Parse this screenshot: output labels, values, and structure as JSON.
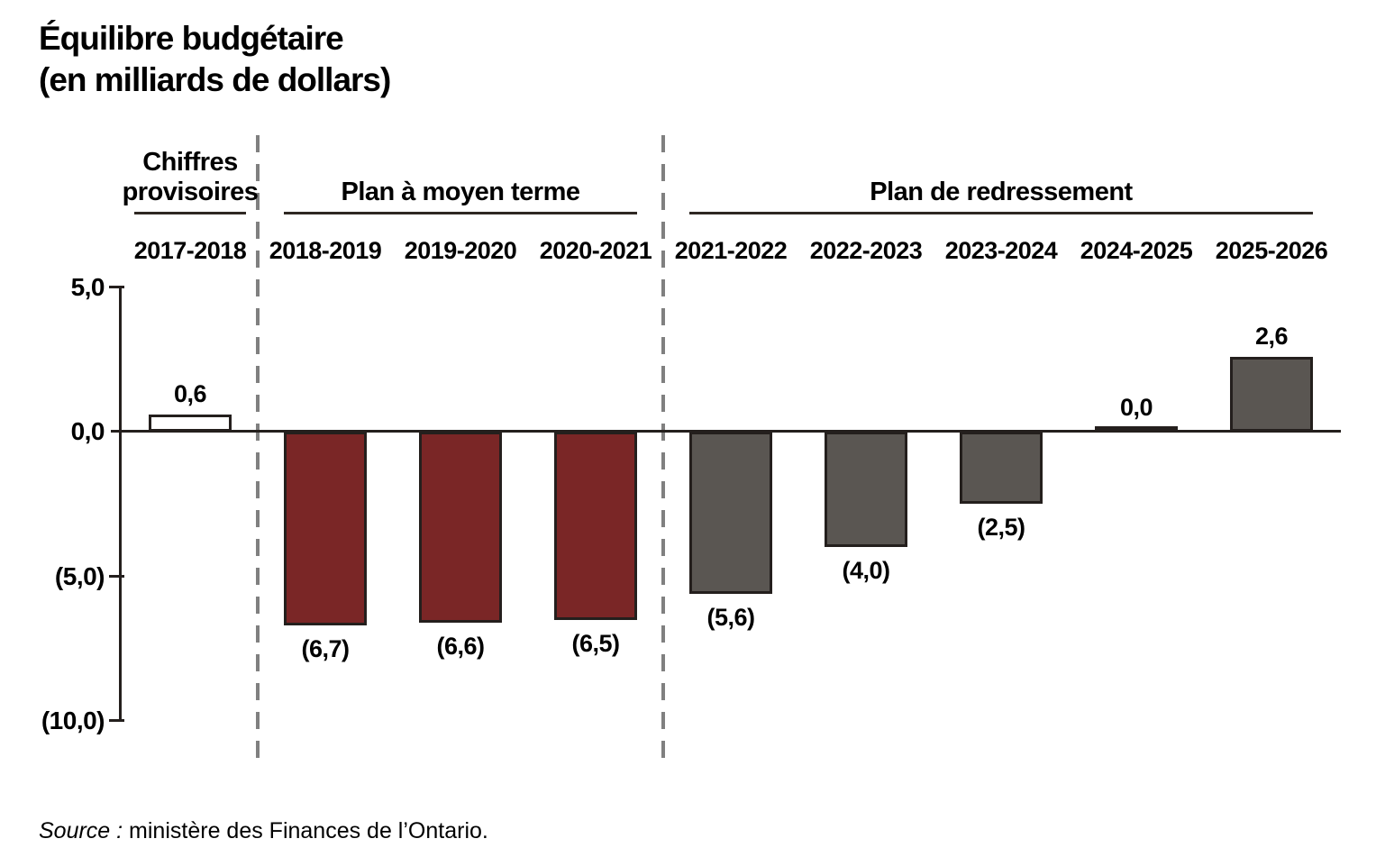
{
  "page": {
    "title_line1": "Équilibre budgétaire",
    "title_line2": "(en milliards de dollars)",
    "source_prefix": "Source :",
    "source_text": " ministère des Finances de l’Ontario."
  },
  "chart_data": {
    "type": "bar",
    "title": "Équilibre budgétaire (en milliards de dollars)",
    "ylabel": "",
    "xlabel": "",
    "categories": [
      "2017-2018",
      "2018-2019",
      "2019-2020",
      "2020-2021",
      "2021-2022",
      "2022-2023",
      "2023-2024",
      "2024-2025",
      "2025-2026"
    ],
    "values": [
      0.6,
      -6.7,
      -6.6,
      -6.5,
      -5.6,
      -4.0,
      -2.5,
      0.0,
      2.6
    ],
    "value_labels": [
      "0,6",
      "(6,7)",
      "(6,6)",
      "(6,5)",
      "(5,6)",
      "(4,0)",
      "(2,5)",
      "0,0",
      "2,6"
    ],
    "bar_colors": [
      "#FFFFFF",
      "#7A2626",
      "#7A2626",
      "#7A2626",
      "#5A5652",
      "#5A5652",
      "#5A5652",
      "#241F1D",
      "#5A5652"
    ],
    "groups": [
      {
        "label": "Chiffres provisoires",
        "start": 0,
        "end": 0
      },
      {
        "label": "Plan à moyen terme",
        "start": 1,
        "end": 3
      },
      {
        "label": "Plan de redressement",
        "start": 4,
        "end": 8
      }
    ],
    "y_axis": {
      "ylim": [
        -10,
        5
      ],
      "ticks": [
        {
          "value": 5,
          "label": "5,0"
        },
        {
          "value": 0,
          "label": "0,0"
        },
        {
          "value": -5,
          "label": "(5,0)"
        },
        {
          "value": -10,
          "label": "(10,0)"
        }
      ]
    },
    "legend": "none",
    "grid": "off",
    "colors": {
      "maroon_bar": "#7A2626",
      "gray_bar": "#5A5652",
      "white_bar": "#FFFFFF",
      "bar_border": "#241F1D",
      "axis_line": "#241F1D",
      "section_underline": "#2E2823",
      "divider_dash": "#808080"
    },
    "source": "Source : ministère des Finances de l’Ontario."
  }
}
